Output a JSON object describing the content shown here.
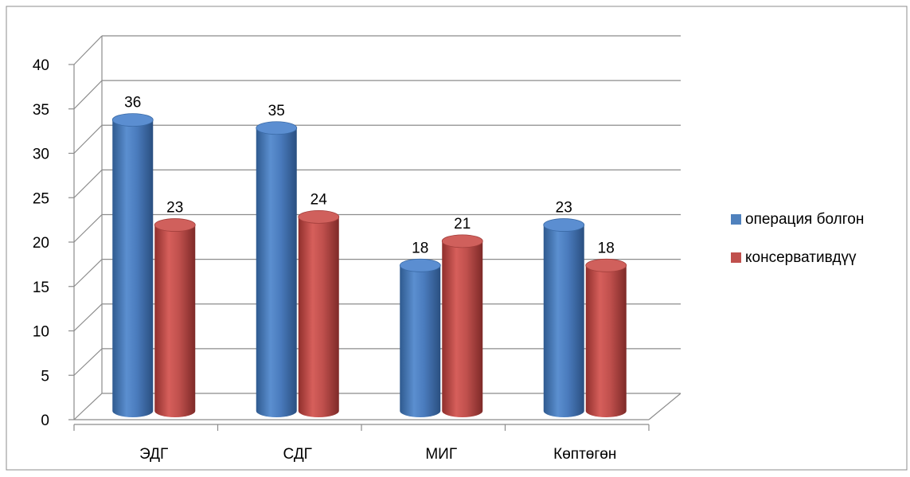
{
  "chart_data": {
    "type": "bar",
    "title": "",
    "xlabel": "",
    "ylabel": "",
    "ylim": [
      0,
      40
    ],
    "yticks": [
      0,
      5,
      10,
      15,
      20,
      25,
      30,
      35,
      40
    ],
    "grid": true,
    "legend_position": "right",
    "categories": [
      "ЭДГ",
      "СДГ",
      "МИГ",
      "Көптөгөн"
    ],
    "series": [
      {
        "name": "операция болгон",
        "values": [
          36,
          35,
          18,
          23
        ],
        "color": "#4F81BD"
      },
      {
        "name": "консервативдүү",
        "values": [
          23,
          24,
          21,
          18
        ],
        "color": "#C0504D"
      }
    ]
  }
}
